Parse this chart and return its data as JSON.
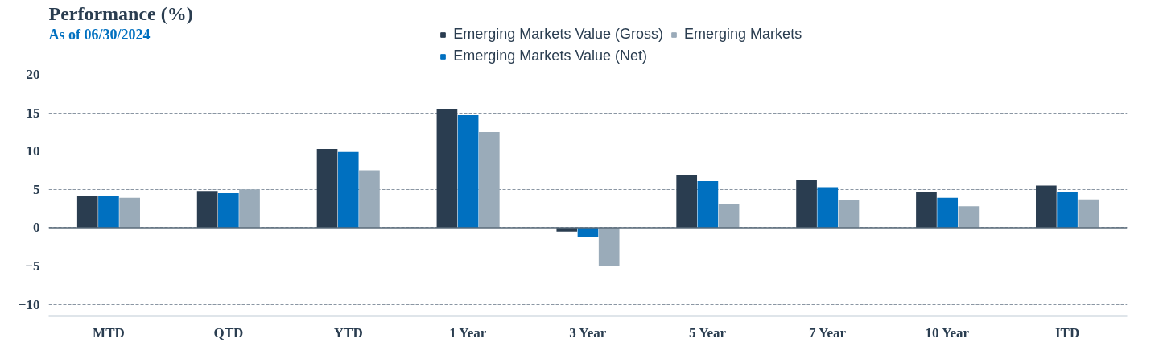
{
  "chart_data": {
    "type": "bar",
    "title": "Performance (%)",
    "subtitle": "As of 06/30/2024",
    "categories": [
      "MTD",
      "QTD",
      "YTD",
      "1 Year",
      "3 Year",
      "5 Year",
      "7 Year",
      "10 Year",
      "ITD"
    ],
    "series": [
      {
        "name": "Emerging Markets Value (Gross)",
        "color": "#2a3d50",
        "values": [
          4.1,
          4.8,
          10.3,
          15.5,
          -0.5,
          6.9,
          6.2,
          4.7,
          5.5
        ]
      },
      {
        "name": "Emerging Markets Value (Net)",
        "color": "#0070c0",
        "values": [
          4.1,
          4.5,
          9.9,
          14.7,
          -1.2,
          6.1,
          5.3,
          3.9,
          4.7
        ]
      },
      {
        "name": "Emerging Markets",
        "color": "#9aabb9",
        "values": [
          3.9,
          5.0,
          7.5,
          12.5,
          -5.0,
          3.1,
          3.6,
          2.8,
          3.7
        ]
      }
    ],
    "ylim": [
      -11.5,
      20
    ],
    "yticks": [
      -10,
      -5,
      0,
      5,
      10,
      15,
      20
    ],
    "grid": "y",
    "legend": "top right"
  }
}
